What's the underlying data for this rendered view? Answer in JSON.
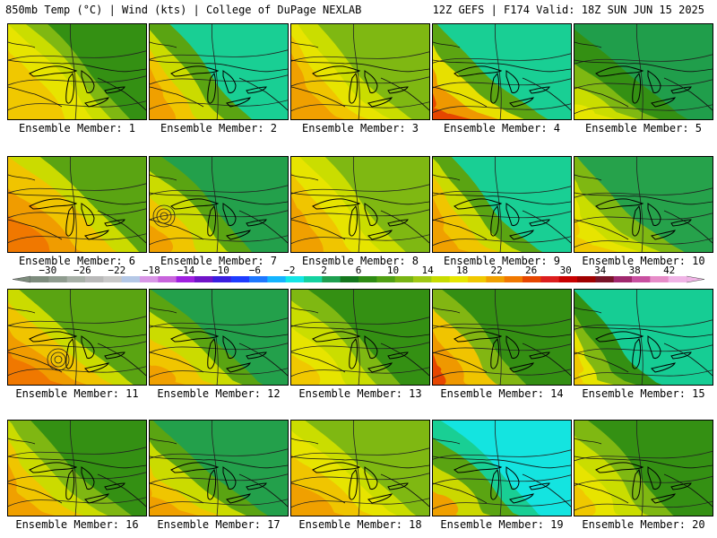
{
  "header": {
    "left": "850mb Temp (°C) | Wind (kts) | College of DuPage NEXLAB",
    "right": "12Z GEFS | F174 Valid: 18Z SUN JUN 15 2025"
  },
  "colorbar": {
    "tick_labels": [
      "−30",
      "−26",
      "−22",
      "−18",
      "−14",
      "−10",
      "−6",
      "−2",
      "2",
      "6",
      "10",
      "14",
      "18",
      "22",
      "26",
      "30",
      "34",
      "38",
      "42"
    ],
    "colors": [
      "#7d8c7d",
      "#8f9c8f",
      "#a7b0a7",
      "#b9b9b9",
      "#c8c8c8",
      "#b4c8e6",
      "#d896e6",
      "#c864dc",
      "#a020e0",
      "#7014c8",
      "#3a1ee0",
      "#1e3cff",
      "#1e78ff",
      "#14b4ff",
      "#14e6e6",
      "#14d2a0",
      "#1ea050",
      "#14781e",
      "#2e8c14",
      "#50a014",
      "#78b414",
      "#a0c814",
      "#c8dc00",
      "#e6e600",
      "#f0c800",
      "#f0a000",
      "#f07800",
      "#e64600",
      "#dc1e1e",
      "#c80000",
      "#a00000",
      "#781428",
      "#a0286e",
      "#c850a0",
      "#e68cc8",
      "#f0b4e6"
    ]
  },
  "panels": [
    {
      "caption": "Ensemble Member: 1",
      "palette": [
        "#f0c800",
        "#e6e600",
        "#c8dc00",
        "#78b414",
        "#2e8c14"
      ],
      "bands": [
        0.55,
        0.8,
        0.95,
        1.1,
        1.3
      ],
      "ridge": 0.2
    },
    {
      "caption": "Ensemble Member: 2",
      "palette": [
        "#f0a000",
        "#f0c800",
        "#c8dc00",
        "#50a014",
        "#14d2a0"
      ],
      "bands": [
        0.3,
        0.5,
        0.72,
        0.95,
        1.15
      ],
      "ridge": 0.1
    },
    {
      "caption": "Ensemble Member: 3",
      "palette": [
        "#f0a000",
        "#f0c800",
        "#e6e600",
        "#c8dc00",
        "#78b414"
      ],
      "bands": [
        0.45,
        0.65,
        0.85,
        1.05,
        1.3
      ],
      "ridge": 0.3
    },
    {
      "caption": "Ensemble Member: 4",
      "palette": [
        "#e64600",
        "#f0a000",
        "#e6e600",
        "#50a014",
        "#14d2a0"
      ],
      "bands": [
        0.15,
        0.4,
        0.65,
        0.9,
        1.15
      ],
      "ridge": 0.5
    },
    {
      "caption": "Ensemble Member: 5",
      "palette": [
        "#e6e600",
        "#c8dc00",
        "#78b414",
        "#2e8c14",
        "#1ea050"
      ],
      "bands": [
        0.15,
        0.35,
        0.55,
        0.85,
        1.2
      ],
      "ridge": 0.6
    },
    {
      "caption": "Ensemble Member: 6",
      "palette": [
        "#f07800",
        "#f0a000",
        "#f0c800",
        "#c8dc00",
        "#50a014"
      ],
      "bands": [
        0.35,
        0.6,
        0.9,
        1.1,
        1.3
      ],
      "ridge": 0.2
    },
    {
      "caption": "Ensemble Member: 7",
      "palette": [
        "#f0a000",
        "#f0c800",
        "#c8dc00",
        "#50a014",
        "#1ea050"
      ],
      "bands": [
        0.2,
        0.45,
        0.7,
        0.9,
        1.1
      ],
      "ridge": 0.4
    },
    {
      "caption": "Ensemble Member: 8",
      "palette": [
        "#f0a000",
        "#f0c800",
        "#e6e600",
        "#c8dc00",
        "#78b414"
      ],
      "bands": [
        0.35,
        0.6,
        0.85,
        1.05,
        1.3
      ],
      "ridge": 0.3
    },
    {
      "caption": "Ensemble Member: 9",
      "palette": [
        "#f0a000",
        "#f0c800",
        "#c8dc00",
        "#50a014",
        "#14d2a0"
      ],
      "bands": [
        0.3,
        0.55,
        0.75,
        0.95,
        1.2
      ],
      "ridge": 0.5
    },
    {
      "caption": "Ensemble Member: 10",
      "palette": [
        "#f0c800",
        "#e6e600",
        "#c8dc00",
        "#78b414",
        "#1ea050"
      ],
      "bands": [
        0.2,
        0.4,
        0.6,
        0.85,
        1.2
      ],
      "ridge": 0.7
    },
    {
      "caption": "Ensemble Member: 11",
      "palette": [
        "#f07800",
        "#f0a000",
        "#f0c800",
        "#c8dc00",
        "#50a014"
      ],
      "bands": [
        0.35,
        0.55,
        0.8,
        1.0,
        1.25
      ],
      "ridge": 0.2
    },
    {
      "caption": "Ensemble Member: 12",
      "palette": [
        "#f0a000",
        "#f0c800",
        "#c8dc00",
        "#50a014",
        "#1ea050"
      ],
      "bands": [
        0.2,
        0.45,
        0.7,
        0.9,
        1.15
      ],
      "ridge": 0.4
    },
    {
      "caption": "Ensemble Member: 13",
      "palette": [
        "#f0c800",
        "#e6e600",
        "#c8dc00",
        "#78b414",
        "#2e8c14"
      ],
      "bands": [
        0.25,
        0.5,
        0.75,
        0.95,
        1.25
      ],
      "ridge": 0.3
    },
    {
      "caption": "Ensemble Member: 14",
      "palette": [
        "#e64600",
        "#f0a000",
        "#f0c800",
        "#78b414",
        "#2e8c14"
      ],
      "bands": [
        0.12,
        0.35,
        0.6,
        0.85,
        1.1
      ],
      "ridge": 0.5
    },
    {
      "caption": "Ensemble Member: 15",
      "palette": [
        "#f0c800",
        "#e6e600",
        "#78b414",
        "#2e8c14",
        "#14d2a0"
      ],
      "bands": [
        0.12,
        0.3,
        0.5,
        0.75,
        1.05
      ],
      "ridge": 0.6
    },
    {
      "caption": "Ensemble Member: 16",
      "palette": [
        "#f0a000",
        "#f0c800",
        "#c8dc00",
        "#78b414",
        "#2e8c14"
      ],
      "bands": [
        0.35,
        0.6,
        0.82,
        1.05,
        1.3
      ],
      "ridge": 0.2
    },
    {
      "caption": "Ensemble Member: 17",
      "palette": [
        "#f0a000",
        "#f0c800",
        "#c8dc00",
        "#50a014",
        "#1ea050"
      ],
      "bands": [
        0.25,
        0.45,
        0.7,
        0.92,
        1.15
      ],
      "ridge": 0.4
    },
    {
      "caption": "Ensemble Member: 18",
      "palette": [
        "#f0a000",
        "#f0c800",
        "#e6e600",
        "#c8dc00",
        "#78b414"
      ],
      "bands": [
        0.35,
        0.6,
        0.82,
        1.0,
        1.25
      ],
      "ridge": 0.3
    },
    {
      "caption": "Ensemble Member: 19",
      "palette": [
        "#f0a000",
        "#c8dc00",
        "#50a014",
        "#14d2a0",
        "#14e6e6"
      ],
      "bands": [
        0.2,
        0.45,
        0.7,
        0.9,
        1.05
      ],
      "ridge": 0.5
    },
    {
      "caption": "Ensemble Member: 20",
      "palette": [
        "#f0c800",
        "#e6e600",
        "#c8dc00",
        "#78b414",
        "#2e8c14"
      ],
      "bands": [
        0.2,
        0.42,
        0.65,
        0.88,
        1.15
      ],
      "ridge": 0.65
    }
  ]
}
